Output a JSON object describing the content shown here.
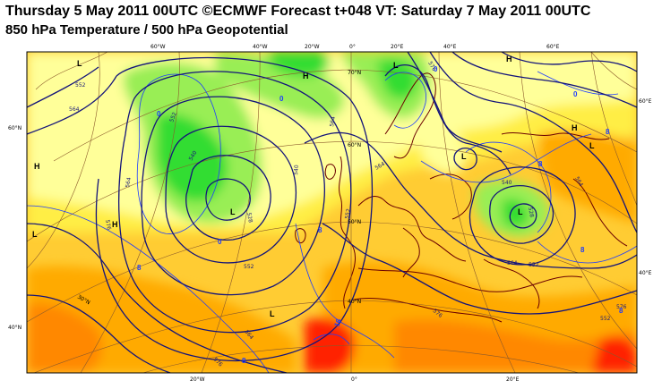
{
  "title": "Thursday 5 May 2011 00UTC ©ECMWF Forecast t+048 VT: Saturday 7 May 2011 00UTC",
  "subtitle": "850 hPa Temperature / 500 hPa Geopotential",
  "longitude_labels_top": [
    "60°W",
    "40°W",
    "20°W",
    "0°",
    "20°E",
    "40°E",
    "60°E"
  ],
  "longitude_labels_bottom": [
    "20°W",
    "0°",
    "20°E"
  ],
  "latitude_labels_left": [
    "60°N",
    "40°N"
  ],
  "latitude_labels_right": [
    "60°E",
    "40°E"
  ],
  "latitude_labels_inner": [
    "70°N",
    "60°N",
    "50°N",
    "40°N",
    "30°N"
  ],
  "pressure_centers": [
    "L",
    "L",
    "L",
    "L",
    "L",
    "L",
    "L",
    "L",
    "H",
    "H",
    "H",
    "H",
    "H"
  ],
  "geopotential_labels": [
    "552",
    "564",
    "552",
    "540",
    "564",
    "576",
    "552",
    "540",
    "528",
    "564",
    "576",
    "564",
    "552",
    "576",
    "564",
    "576",
    "564",
    "552",
    "528",
    "540",
    "564",
    "576",
    "552"
  ],
  "temperature_labels": [
    "0",
    "0",
    "0",
    "0",
    "8",
    "8",
    "8",
    "8",
    "8",
    "8",
    "8",
    "16",
    "0"
  ],
  "colors": {
    "cold_green": "#33dd33",
    "light_green": "#99ee55",
    "pale_yellow": "#ffff99",
    "yellow": "#ffee44",
    "light_orange": "#ffcc33",
    "orange": "#ffaa00",
    "dark_orange": "#ff8800",
    "red": "#ff2200",
    "contour_blue": "#14147a",
    "coastline": "#6b0000",
    "grid": "#8b5a2b"
  }
}
